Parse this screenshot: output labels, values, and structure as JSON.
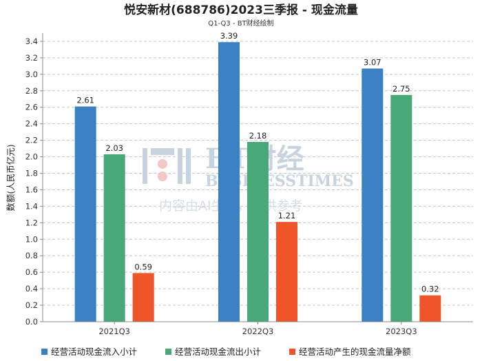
{
  "chart_data": {
    "type": "bar",
    "title": "悦安新材(688786)2023三季报 - 现金流量",
    "subtitle": "Q1-Q3 - BT财经绘制",
    "ylabel": "数额(人民币亿元)",
    "xlabel": "",
    "categories": [
      "2021Q3",
      "2022Q3",
      "2023Q3"
    ],
    "ylim": [
      0,
      3.5
    ],
    "yticks": [
      0.0,
      0.2,
      0.4,
      0.6,
      0.8,
      1.0,
      1.2,
      1.4,
      1.6,
      1.8,
      2.0,
      2.2,
      2.4,
      2.6,
      2.8,
      3.0,
      3.2,
      3.4
    ],
    "grid": true,
    "legend_position": "bottom",
    "series": [
      {
        "name": "经营活动现金流入小计",
        "color": "#3a80c2",
        "values": [
          2.61,
          3.39,
          3.07
        ],
        "labels": [
          "2.61",
          "3.39",
          "3.07"
        ]
      },
      {
        "name": "经营活动现金流出小计",
        "color": "#48a878",
        "values": [
          2.03,
          2.18,
          2.75
        ],
        "labels": [
          "2.03",
          "2.18",
          "2.75"
        ]
      },
      {
        "name": "经营活动产生的现金流量净额",
        "color": "#f0552a",
        "values": [
          0.59,
          1.21,
          0.32
        ],
        "labels": [
          "0.59",
          "1.21",
          "0.32"
        ]
      }
    ]
  },
  "watermark": {
    "brand": "BT财经",
    "brand_en": "BUSINESSTIMES",
    "notice": "内容由AI生成，仅供参考"
  }
}
